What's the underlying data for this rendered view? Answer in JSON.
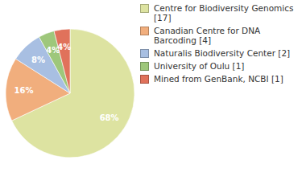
{
  "chart_data": {
    "type": "pie",
    "categories": [
      "Centre for Biodiversity Genomics [17]",
      "Canadian Centre for DNA Barcoding [4]",
      "Naturalis Biodiversity Center [2]",
      "University of Oulu [1]",
      "Mined from GenBank, NCBI [1]"
    ],
    "values": [
      68,
      16,
      8,
      4,
      4
    ],
    "value_labels": [
      "68%",
      "16%",
      "8%",
      "4%",
      "4%"
    ],
    "colors": [
      "#dde3a1",
      "#f1ae7d",
      "#a8bfe2",
      "#9ec77b",
      "#e0725b"
    ],
    "data_labels": true,
    "legend": "right"
  }
}
